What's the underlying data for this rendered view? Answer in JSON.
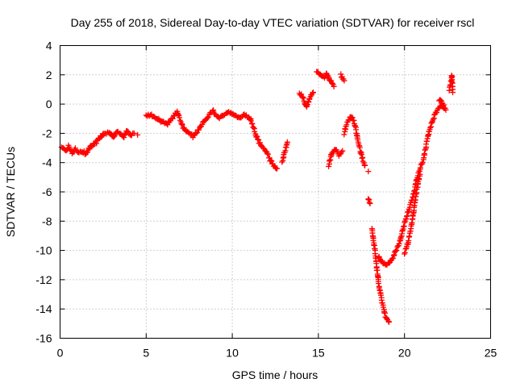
{
  "chart_data": {
    "type": "scatter",
    "title": "Day 255 of 2018, Sidereal Day-to-day VTEC variation (SDTVAR) for receiver rscl",
    "xlabel": "GPS time / hours",
    "ylabel": "SDTVAR / TECUs",
    "xlim": [
      0,
      25
    ],
    "ylim": [
      -16,
      4
    ],
    "xticks": [
      "0",
      "5",
      "10",
      "15",
      "20",
      "25"
    ],
    "yticks": [
      "4",
      "2",
      "0",
      "-2",
      "-4",
      "-6",
      "-8",
      "-10",
      "-12",
      "-14",
      "-16"
    ],
    "grid": true,
    "marker": "+",
    "color": "#ff0000",
    "series": [
      {
        "name": "rscl",
        "segments": [
          [
            [
              0.1,
              -3.0
            ],
            [
              0.3,
              -3.2
            ],
            [
              0.5,
              -2.9
            ],
            [
              0.7,
              -3.3
            ],
            [
              0.9,
              -3.1
            ],
            [
              1.1,
              -3.3
            ],
            [
              1.3,
              -3.2
            ],
            [
              1.5,
              -3.4
            ],
            [
              1.7,
              -3.0
            ],
            [
              1.9,
              -2.8
            ],
            [
              2.1,
              -2.6
            ],
            [
              2.3,
              -2.3
            ],
            [
              2.5,
              -2.1
            ],
            [
              2.7,
              -2.0
            ],
            [
              2.9,
              -1.9
            ],
            [
              3.1,
              -2.3
            ],
            [
              3.3,
              -1.9
            ],
            [
              3.5,
              -2.0
            ],
            [
              3.7,
              -2.2
            ],
            [
              3.9,
              -1.8
            ],
            [
              4.1,
              -2.1
            ],
            [
              4.3,
              -2.0
            ]
          ],
          [
            [
              4.5,
              -2.1
            ]
          ],
          [
            [
              5.0,
              -0.8
            ],
            [
              5.3,
              -0.7
            ],
            [
              5.6,
              -1.0
            ],
            [
              5.9,
              -1.2
            ],
            [
              6.2,
              -1.4
            ],
            [
              6.5,
              -1.0
            ],
            [
              6.8,
              -0.5
            ],
            [
              7.1,
              -1.5
            ],
            [
              7.4,
              -1.9
            ],
            [
              7.7,
              -2.2
            ],
            [
              8.0,
              -1.8
            ],
            [
              8.3,
              -1.3
            ],
            [
              8.6,
              -0.8
            ],
            [
              8.9,
              -0.5
            ],
            [
              9.2,
              -1.0
            ],
            [
              9.5,
              -0.7
            ],
            [
              9.8,
              -0.5
            ],
            [
              10.1,
              -0.8
            ],
            [
              10.4,
              -1.0
            ],
            [
              10.7,
              -0.7
            ],
            [
              11.0,
              -0.9
            ],
            [
              11.2,
              -1.5
            ],
            [
              11.4,
              -2.2
            ],
            [
              11.6,
              -2.7
            ],
            [
              11.8,
              -3.0
            ],
            [
              12.0,
              -3.3
            ],
            [
              12.2,
              -3.8
            ],
            [
              12.4,
              -4.2
            ],
            [
              12.6,
              -4.4
            ]
          ],
          [
            [
              12.9,
              -4.0
            ],
            [
              13.0,
              -3.5
            ],
            [
              13.1,
              -3.0
            ],
            [
              13.2,
              -2.6
            ]
          ],
          [
            [
              13.9,
              0.7
            ],
            [
              14.1,
              0.5
            ],
            [
              14.3,
              -0.2
            ],
            [
              14.5,
              0.4
            ],
            [
              14.7,
              0.8
            ]
          ],
          [
            [
              14.9,
              2.2
            ],
            [
              15.1,
              2.0
            ],
            [
              15.3,
              1.8
            ],
            [
              15.5,
              2.1
            ],
            [
              15.7,
              1.6
            ],
            [
              15.9,
              1.2
            ]
          ],
          [
            [
              15.6,
              -4.2
            ],
            [
              15.8,
              -3.3
            ],
            [
              16.0,
              -3.1
            ],
            [
              16.2,
              -3.5
            ],
            [
              16.4,
              -3.2
            ]
          ],
          [
            [
              16.3,
              2.0
            ],
            [
              16.5,
              1.6
            ]
          ],
          [
            [
              16.5,
              -2.0
            ],
            [
              16.7,
              -1.2
            ],
            [
              16.9,
              -0.8
            ],
            [
              17.1,
              -1.3
            ],
            [
              17.3,
              -2.5
            ],
            [
              17.5,
              -3.5
            ],
            [
              17.7,
              -4.2
            ]
          ],
          [
            [
              17.9,
              -4.6
            ]
          ],
          [
            [
              17.9,
              -6.4
            ],
            [
              18.0,
              -6.8
            ]
          ],
          [
            [
              18.1,
              -8.5
            ],
            [
              18.2,
              -9.3
            ],
            [
              18.3,
              -10.2
            ],
            [
              18.4,
              -11.3
            ],
            [
              18.5,
              -12.3
            ],
            [
              18.6,
              -12.9
            ],
            [
              18.7,
              -13.5
            ],
            [
              18.8,
              -14.0
            ],
            [
              18.9,
              -14.5
            ],
            [
              19.1,
              -14.9
            ]
          ],
          [
            [
              18.5,
              -10.4
            ],
            [
              18.7,
              -10.8
            ],
            [
              18.9,
              -11.0
            ],
            [
              19.1,
              -10.8
            ],
            [
              19.3,
              -10.6
            ],
            [
              19.5,
              -10.0
            ],
            [
              19.7,
              -9.5
            ],
            [
              19.9,
              -8.6
            ],
            [
              20.1,
              -7.8
            ],
            [
              20.3,
              -7.0
            ],
            [
              20.5,
              -6.3
            ],
            [
              20.7,
              -5.2
            ],
            [
              20.9,
              -4.4
            ],
            [
              21.1,
              -3.8
            ],
            [
              21.3,
              -2.5
            ],
            [
              21.5,
              -1.6
            ],
            [
              21.7,
              -0.9
            ],
            [
              21.9,
              -0.4
            ],
            [
              22.1,
              -0.1
            ],
            [
              22.3,
              -0.3
            ]
          ],
          [
            [
              20.0,
              -10.2
            ],
            [
              20.2,
              -9.5
            ],
            [
              20.4,
              -8.4
            ],
            [
              20.5,
              -7.6
            ],
            [
              20.6,
              -6.8
            ],
            [
              20.7,
              -6.0
            ],
            [
              20.8,
              -5.3
            ],
            [
              20.9,
              -4.8
            ]
          ],
          [
            [
              22.0,
              0.3
            ],
            [
              22.2,
              0.1
            ],
            [
              22.4,
              -0.4
            ]
          ],
          [
            [
              22.6,
              1.0
            ],
            [
              22.7,
              1.5
            ],
            [
              22.75,
              2.0
            ],
            [
              22.8,
              0.8
            ]
          ]
        ]
      }
    ]
  }
}
